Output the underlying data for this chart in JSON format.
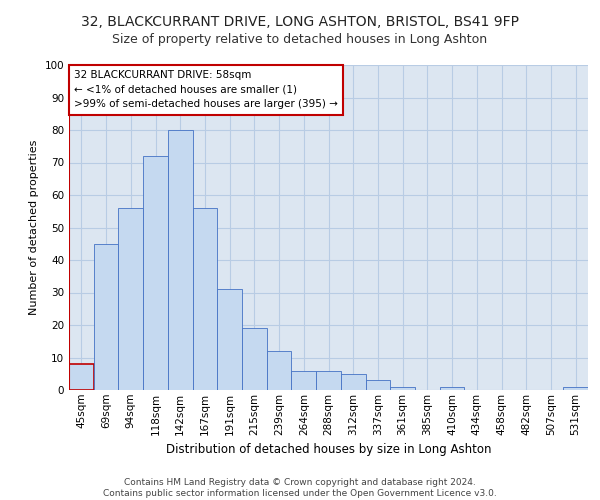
{
  "title1": "32, BLACKCURRANT DRIVE, LONG ASHTON, BRISTOL, BS41 9FP",
  "title2": "Size of property relative to detached houses in Long Ashton",
  "xlabel": "Distribution of detached houses by size in Long Ashton",
  "ylabel": "Number of detached properties",
  "categories": [
    "45sqm",
    "69sqm",
    "94sqm",
    "118sqm",
    "142sqm",
    "167sqm",
    "191sqm",
    "215sqm",
    "239sqm",
    "264sqm",
    "288sqm",
    "312sqm",
    "337sqm",
    "361sqm",
    "385sqm",
    "410sqm",
    "434sqm",
    "458sqm",
    "482sqm",
    "507sqm",
    "531sqm"
  ],
  "values": [
    8,
    45,
    56,
    72,
    80,
    56,
    31,
    19,
    12,
    6,
    6,
    5,
    3,
    1,
    0,
    1,
    0,
    0,
    0,
    0,
    1
  ],
  "bar_color": "#c5d9f0",
  "bar_edge_color": "#4472c4",
  "highlight_bar_index": 0,
  "highlight_color": "#c00000",
  "grid_color": "#b8cce4",
  "bg_color": "#dce6f1",
  "annotation_text": "32 BLACKCURRANT DRIVE: 58sqm\n← <1% of detached houses are smaller (1)\n>99% of semi-detached houses are larger (395) →",
  "annotation_box_color": "#ffffff",
  "annotation_border_color": "#c00000",
  "ylim": [
    0,
    100
  ],
  "yticks": [
    0,
    10,
    20,
    30,
    40,
    50,
    60,
    70,
    80,
    90,
    100
  ],
  "footer1": "Contains HM Land Registry data © Crown copyright and database right 2024.",
  "footer2": "Contains public sector information licensed under the Open Government Licence v3.0.",
  "title1_fontsize": 10,
  "title2_fontsize": 9,
  "xlabel_fontsize": 8.5,
  "ylabel_fontsize": 8,
  "tick_fontsize": 7.5,
  "annotation_fontsize": 7.5,
  "footer_fontsize": 6.5
}
